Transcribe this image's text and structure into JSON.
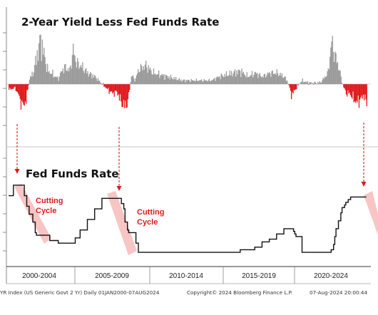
{
  "chart_data": [
    {
      "type": "area",
      "title": "2-Year Yield Less Fed Funds Rate",
      "x_range": [
        "2000-01-01",
        "2024-08-07"
      ],
      "baseline": 0,
      "colors": {
        "positive": "#9a9a9a",
        "negative": "#e0191c"
      },
      "points": [
        [
          "2000-01",
          -0.3
        ],
        [
          "2000-06",
          -0.2
        ],
        [
          "2000-09",
          -0.6
        ],
        [
          "2000-12",
          -1.2
        ],
        [
          "2001-03",
          -0.9
        ],
        [
          "2001-06",
          0.3
        ],
        [
          "2001-09",
          0.6
        ],
        [
          "2001-12",
          1.5
        ],
        [
          "2002-03",
          2.4
        ],
        [
          "2002-06",
          1.6
        ],
        [
          "2002-09",
          0.7
        ],
        [
          "2002-12",
          0.6
        ],
        [
          "2003-03",
          0.4
        ],
        [
          "2003-06",
          0.3
        ],
        [
          "2003-09",
          0.8
        ],
        [
          "2003-12",
          0.9
        ],
        [
          "2004-03",
          0.7
        ],
        [
          "2004-06",
          1.8
        ],
        [
          "2004-09",
          1.1
        ],
        [
          "2004-12",
          1.0
        ],
        [
          "2005-06",
          0.6
        ],
        [
          "2005-12",
          0.4
        ],
        [
          "2006-06",
          0.0
        ],
        [
          "2006-12",
          -0.4
        ],
        [
          "2007-03",
          -0.5
        ],
        [
          "2007-06",
          -0.4
        ],
        [
          "2007-09",
          -0.9
        ],
        [
          "2007-12",
          -1.2
        ],
        [
          "2008-03",
          -1.0
        ],
        [
          "2008-06",
          0.5
        ],
        [
          "2008-09",
          0.2
        ],
        [
          "2008-12",
          0.8
        ],
        [
          "2009-03",
          0.9
        ],
        [
          "2009-06",
          1.0
        ],
        [
          "2009-09",
          0.8
        ],
        [
          "2009-12",
          0.6
        ],
        [
          "2010-06",
          0.5
        ],
        [
          "2010-12",
          0.4
        ],
        [
          "2011-06",
          0.3
        ],
        [
          "2011-12",
          0.2
        ],
        [
          "2012-06",
          0.2
        ],
        [
          "2012-12",
          0.2
        ],
        [
          "2013-06",
          0.2
        ],
        [
          "2013-12",
          0.2
        ],
        [
          "2014-06",
          0.4
        ],
        [
          "2014-12",
          0.5
        ],
        [
          "2015-06",
          0.6
        ],
        [
          "2015-12",
          0.7
        ],
        [
          "2016-06",
          0.4
        ],
        [
          "2016-12",
          0.6
        ],
        [
          "2017-06",
          0.4
        ],
        [
          "2017-12",
          0.6
        ],
        [
          "2018-06",
          0.6
        ],
        [
          "2018-12",
          0.4
        ],
        [
          "2019-03",
          0.1
        ],
        [
          "2019-06",
          -0.6
        ],
        [
          "2019-09",
          -0.3
        ],
        [
          "2019-12",
          0.0
        ],
        [
          "2020-03",
          0.2
        ],
        [
          "2020-06",
          0.1
        ],
        [
          "2020-12",
          0.05
        ],
        [
          "2021-06",
          0.1
        ],
        [
          "2021-12",
          0.6
        ],
        [
          "2022-03",
          2.3
        ],
        [
          "2022-06",
          1.5
        ],
        [
          "2022-09",
          0.9
        ],
        [
          "2022-12",
          0.0
        ],
        [
          "2023-03",
          -0.5
        ],
        [
          "2023-06",
          -0.5
        ],
        [
          "2023-09",
          -0.8
        ],
        [
          "2023-12",
          -1.0
        ],
        [
          "2024-03",
          -0.8
        ],
        [
          "2024-06",
          -0.6
        ],
        [
          "2024-08",
          -1.2
        ]
      ]
    },
    {
      "type": "line",
      "title": "Fed Funds Rate",
      "x_range": [
        "2000-01-01",
        "2024-08-07"
      ],
      "color": "#111111",
      "points": [
        [
          "2000-01",
          5.5
        ],
        [
          "2000-05",
          6.5
        ],
        [
          "2001-01",
          6.5
        ],
        [
          "2001-02",
          5.5
        ],
        [
          "2001-04",
          4.5
        ],
        [
          "2001-06",
          3.75
        ],
        [
          "2001-09",
          3.0
        ],
        [
          "2001-11",
          2.0
        ],
        [
          "2001-12",
          1.75
        ],
        [
          "2002-11",
          1.25
        ],
        [
          "2003-06",
          1.0
        ],
        [
          "2004-06",
          1.0
        ],
        [
          "2004-08",
          1.5
        ],
        [
          "2004-12",
          2.25
        ],
        [
          "2005-06",
          3.25
        ],
        [
          "2005-12",
          4.25
        ],
        [
          "2006-06",
          5.25
        ],
        [
          "2007-08",
          5.25
        ],
        [
          "2007-10",
          4.75
        ],
        [
          "2007-12",
          4.25
        ],
        [
          "2008-01",
          3.0
        ],
        [
          "2008-03",
          2.25
        ],
        [
          "2008-04",
          2.0
        ],
        [
          "2008-10",
          1.0
        ],
        [
          "2008-12",
          0.125
        ],
        [
          "2015-12",
          0.375
        ],
        [
          "2016-12",
          0.625
        ],
        [
          "2017-06",
          1.125
        ],
        [
          "2017-12",
          1.375
        ],
        [
          "2018-06",
          1.875
        ],
        [
          "2018-12",
          2.375
        ],
        [
          "2019-07",
          2.375
        ],
        [
          "2019-08",
          2.125
        ],
        [
          "2019-09",
          1.875
        ],
        [
          "2019-10",
          1.625
        ],
        [
          "2020-03",
          0.125
        ],
        [
          "2022-02",
          0.125
        ],
        [
          "2022-03",
          0.375
        ],
        [
          "2022-05",
          0.875
        ],
        [
          "2022-06",
          1.625
        ],
        [
          "2022-07",
          2.375
        ],
        [
          "2022-09",
          3.125
        ],
        [
          "2022-11",
          3.875
        ],
        [
          "2022-12",
          4.375
        ],
        [
          "2023-02",
          4.625
        ],
        [
          "2023-03",
          4.875
        ],
        [
          "2023-05",
          5.125
        ],
        [
          "2023-07",
          5.375
        ],
        [
          "2024-08",
          5.375
        ]
      ],
      "annotations": [
        {
          "text": [
            "Cutting",
            "Cycle"
          ],
          "at": "2001-01"
        },
        {
          "text": [
            "Cutting",
            "Cycle"
          ],
          "at": "2007-09"
        }
      ],
      "annotation_color": "#e0191c"
    }
  ],
  "x_ticks": [
    "2000-2004",
    "2005-2009",
    "2010-2014",
    "2015-2019",
    "2020-2024"
  ],
  "footer": {
    "left": "YR Index (US Generic Govt 2 Yr)  Daily 01JAN2000-07AUG2024",
    "center": "Copyright© 2024 Bloomberg Finance L.P.",
    "right": "07-Aug-2024 20:00:44"
  },
  "overlay_colors": {
    "arrow": "#e0191c",
    "fade": "#f5a6a6"
  }
}
